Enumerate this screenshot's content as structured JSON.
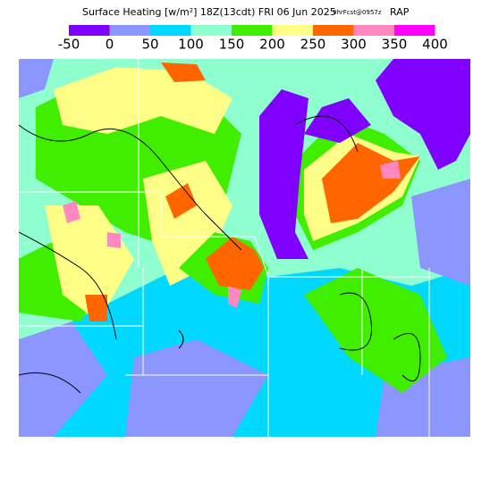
{
  "header": {
    "title": "Surface Heating [w/m²] 18Z(13cdt) FRI 06 Jun 2025",
    "forecast": "9hrFcst@0957z",
    "model": "RAP"
  },
  "legend": {
    "ticks": [
      -50,
      0,
      50,
      100,
      150,
      200,
      250,
      300,
      350,
      400
    ],
    "colors": [
      "#8000ff",
      "#8c96ff",
      "#00d8ff",
      "#90ffd0",
      "#40ee00",
      "#ffff88",
      "#ff6600",
      "#ff88c0",
      "#ff00ff"
    ]
  }
}
